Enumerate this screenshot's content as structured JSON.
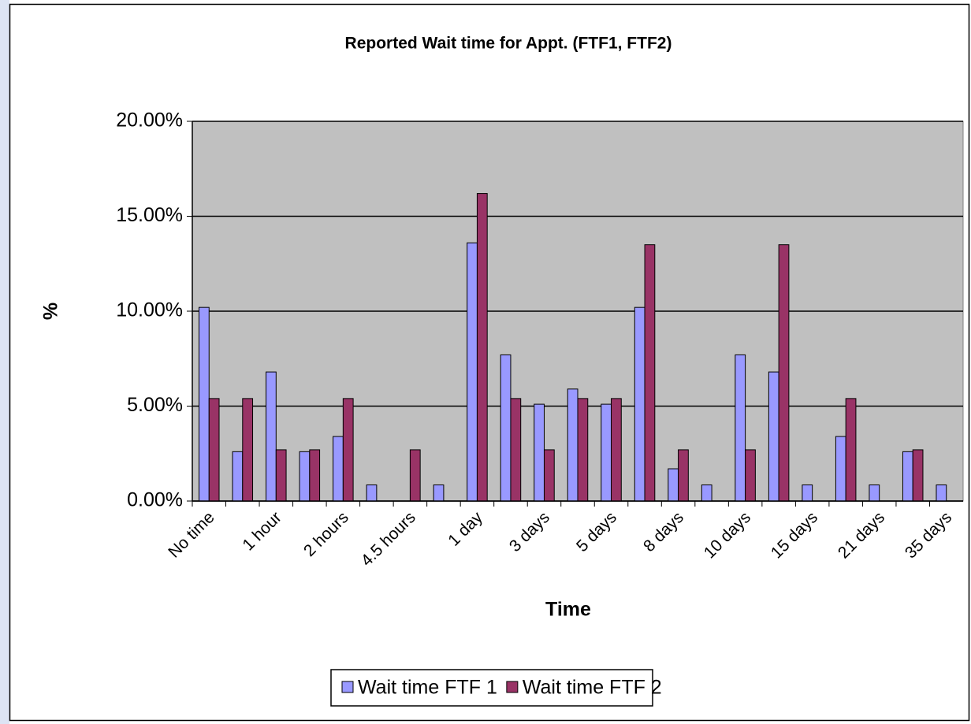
{
  "chart_data": {
    "type": "bar",
    "title": "Reported Wait time for Appt. (FTF1, FTF2)",
    "x_label": "Time",
    "y_label": "%",
    "categories": [
      "No time",
      null,
      "1 hour",
      null,
      "2 hours",
      null,
      "4.5 hours",
      null,
      "1 day",
      null,
      "3 days",
      null,
      "5 days",
      null,
      "8 days",
      null,
      "10 days",
      null,
      "15 days",
      null,
      "21 days",
      null,
      "35 days"
    ],
    "series": [
      {
        "name": "Wait time FTF 1",
        "color": "#9999ff",
        "values": [
          10.2,
          2.6,
          6.8,
          2.6,
          3.4,
          0.85,
          0,
          0.85,
          13.6,
          7.7,
          5.1,
          5.9,
          5.1,
          10.2,
          1.7,
          0.85,
          7.7,
          6.8,
          0.85,
          3.4,
          0.85,
          2.6,
          0.85
        ]
      },
      {
        "name": "Wait time FTF 2",
        "color": "#993366",
        "values": [
          5.4,
          5.4,
          2.7,
          2.7,
          5.4,
          0,
          2.7,
          0,
          16.2,
          5.4,
          2.7,
          5.4,
          5.4,
          13.5,
          2.7,
          0,
          2.7,
          13.5,
          0,
          5.4,
          0,
          2.7,
          0
        ]
      }
    ],
    "ylim": [
      0,
      20
    ],
    "yticks": [
      {
        "value": 0,
        "label": "0.00%"
      },
      {
        "value": 5,
        "label": "5.00%"
      },
      {
        "value": 10,
        "label": "10.00%"
      },
      {
        "value": 15,
        "label": "15.00%"
      },
      {
        "value": 20,
        "label": "20.00%"
      }
    ],
    "grid": true,
    "plot_background": "#c0c0c0",
    "legend": "bottom"
  }
}
